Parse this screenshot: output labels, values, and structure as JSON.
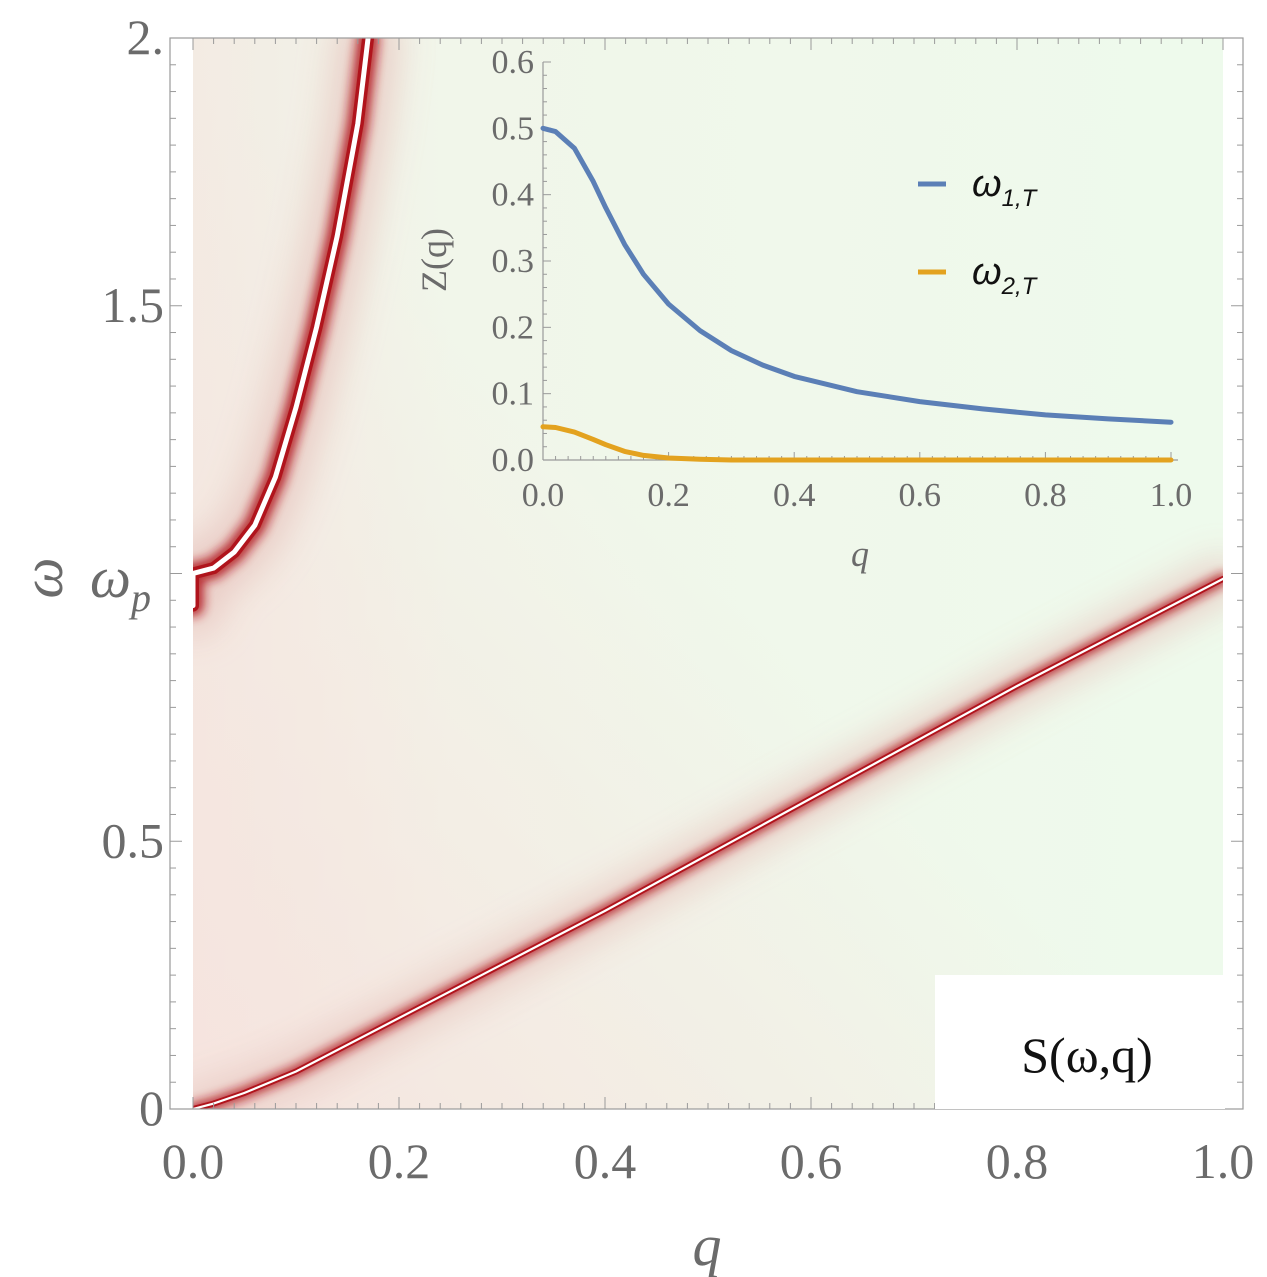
{
  "chart_data": [
    {
      "type": "heatmap",
      "title": "S(ω,q)",
      "xlabel": "q",
      "ylabel": "ω",
      "xlim": [
        0,
        1.0
      ],
      "ylim": [
        0,
        2.0
      ],
      "xticks": [
        {
          "value": 0.0,
          "label": "0.0"
        },
        {
          "value": 0.2,
          "label": "0.2"
        },
        {
          "value": 0.4,
          "label": "0.4"
        },
        {
          "value": 0.6,
          "label": "0.6"
        },
        {
          "value": 0.8,
          "label": "0.8"
        },
        {
          "value": 1.0,
          "label": "1.0"
        }
      ],
      "yticks": [
        {
          "value": 0.0,
          "label": "0"
        },
        {
          "value": 0.5,
          "label": "0.5"
        },
        {
          "value": 1.5,
          "label": "1.5"
        },
        {
          "value": 2.0,
          "label": "2."
        }
      ],
      "special_ytick": {
        "value": 0.98,
        "label": "ω",
        "sub": "p"
      },
      "colors": {
        "background": "#eefaec",
        "peak": "#b0141c",
        "core": "#ffffff"
      },
      "branches": [
        {
          "name": "upper",
          "q": [
            0.0,
            0.02,
            0.04,
            0.06,
            0.08,
            0.1,
            0.12,
            0.14,
            0.16,
            0.17
          ],
          "omega": [
            1.0,
            1.01,
            1.04,
            1.09,
            1.18,
            1.31,
            1.46,
            1.63,
            1.84,
            2.0
          ]
        },
        {
          "name": "lower",
          "q": [
            0.0,
            0.02,
            0.05,
            0.1,
            0.2,
            0.4,
            0.6,
            0.8,
            1.0
          ],
          "omega": [
            0.0,
            0.01,
            0.03,
            0.07,
            0.17,
            0.37,
            0.58,
            0.79,
            0.99
          ]
        }
      ]
    },
    {
      "type": "line",
      "xlabel": "q",
      "ylabel": "Z(q)",
      "xlim": [
        0,
        1.0
      ],
      "ylim": [
        0,
        0.6
      ],
      "xticks": [
        {
          "value": 0.0,
          "label": "0.0"
        },
        {
          "value": 0.2,
          "label": "0.2"
        },
        {
          "value": 0.4,
          "label": "0.4"
        },
        {
          "value": 0.6,
          "label": "0.6"
        },
        {
          "value": 0.8,
          "label": "0.8"
        },
        {
          "value": 1.0,
          "label": "1.0"
        }
      ],
      "yticks": [
        {
          "value": 0.0,
          "label": "0.0"
        },
        {
          "value": 0.1,
          "label": "0.1"
        },
        {
          "value": 0.2,
          "label": "0.2"
        },
        {
          "value": 0.3,
          "label": "0.3"
        },
        {
          "value": 0.4,
          "label": "0.4"
        },
        {
          "value": 0.5,
          "label": "0.5"
        },
        {
          "value": 0.6,
          "label": "0.6"
        }
      ],
      "series": [
        {
          "name": "ω",
          "sub": "1,T",
          "color": "#5b7fb6",
          "x": [
            0.0,
            0.02,
            0.05,
            0.08,
            0.1,
            0.13,
            0.16,
            0.2,
            0.25,
            0.3,
            0.35,
            0.4,
            0.5,
            0.6,
            0.7,
            0.8,
            0.9,
            1.0
          ],
          "y": [
            0.5,
            0.495,
            0.47,
            0.42,
            0.38,
            0.325,
            0.28,
            0.235,
            0.195,
            0.165,
            0.143,
            0.126,
            0.103,
            0.088,
            0.077,
            0.068,
            0.062,
            0.057
          ]
        },
        {
          "name": "ω",
          "sub": "2,T",
          "color": "#e3a21f",
          "x": [
            0.0,
            0.02,
            0.05,
            0.08,
            0.1,
            0.13,
            0.16,
            0.2,
            0.25,
            0.3,
            0.4,
            0.6,
            0.8,
            1.0
          ],
          "y": [
            0.05,
            0.049,
            0.042,
            0.031,
            0.023,
            0.013,
            0.007,
            0.003,
            0.001,
            0.0,
            0.0,
            0.0,
            0.0,
            0.0
          ]
        }
      ]
    }
  ]
}
